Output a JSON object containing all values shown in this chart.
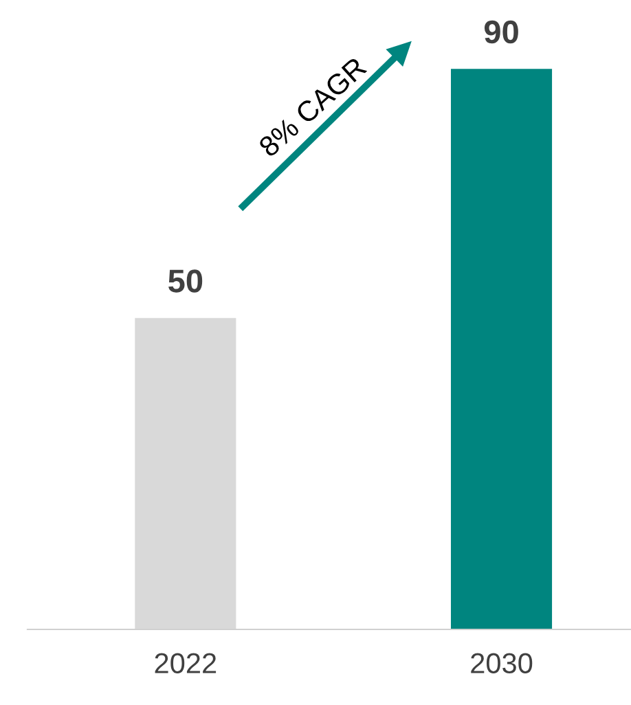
{
  "chart_data": {
    "type": "bar",
    "categories": [
      "2022",
      "2030"
    ],
    "values": [
      50,
      90
    ],
    "colors": [
      "#d9d9d9",
      "#00857f"
    ],
    "data_labels": true,
    "grid": false,
    "legend": false,
    "annotations": [
      "8% CAGR"
    ]
  }
}
